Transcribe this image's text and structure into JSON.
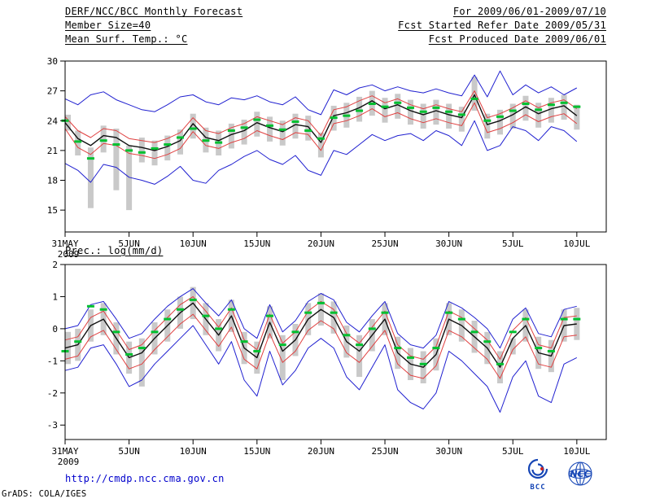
{
  "header": {
    "left": [
      "DERF/NCC/BCC Monthly Forecast",
      "Member Size=40"
    ],
    "right": [
      "For 2009/06/01-2009/07/10",
      "Fcst Started Refer Date 2009/05/31",
      "Fcst Produced Date 2009/06/01"
    ]
  },
  "footer": {
    "url": "http://cmdp.ncc.cma.gov.cn",
    "credit": "GrADS: COLA/IGES",
    "logos": [
      {
        "label": "BCC"
      },
      {
        "label": "NCC"
      }
    ]
  },
  "colors": {
    "envelope": "#2020d0",
    "quartile": "#e04040",
    "mean": "#101010",
    "marker": "#00c030",
    "bar": "#c9c9c9",
    "axis": "#000000",
    "url": "#0000cc",
    "logo": "#1545b5"
  },
  "chart_data": [
    {
      "type": "line",
      "name": "temperature-forecast-chart",
      "title": "Mean Surf. Temp.: °C",
      "x_tick_labels": [
        "31MAY",
        "5JUN",
        "10JUN",
        "15JUN",
        "20JUN",
        "25JUN",
        "30JUN",
        "5JUL",
        "10JUL"
      ],
      "x_tick_days": [
        0,
        5,
        10,
        15,
        20,
        25,
        30,
        35,
        40
      ],
      "x_sub_label": "2009",
      "x_extent": 42.3,
      "ylim": [
        12.8,
        30
      ],
      "yticks": [
        15,
        18,
        21,
        24,
        27,
        30
      ],
      "grid": false,
      "legend": "none",
      "bars": {
        "name": "ensemble-spread-bar",
        "color": "#c9c9c9",
        "lo": [
          23.0,
          20.5,
          15.2,
          20.8,
          17.0,
          15.0,
          19.8,
          19.5,
          20.0,
          20.6,
          22.2,
          20.8,
          20.5,
          21.2,
          21.6,
          22.4,
          21.9,
          21.5,
          22.2,
          22.0,
          20.3,
          23.0,
          23.3,
          23.9,
          24.5,
          23.8,
          24.2,
          23.6,
          23.2,
          23.6,
          23.2,
          22.9,
          25.0,
          22.2,
          22.6,
          23.2,
          24.0,
          23.3,
          23.8,
          24.1,
          23.1
        ],
        "hi": [
          24.6,
          23.0,
          21.3,
          23.5,
          23.2,
          21.5,
          22.3,
          22.0,
          22.5,
          23.1,
          24.7,
          23.3,
          23.0,
          23.7,
          24.1,
          24.9,
          24.4,
          24.0,
          24.7,
          24.5,
          22.8,
          25.5,
          25.8,
          26.4,
          27.0,
          26.3,
          26.7,
          26.1,
          25.7,
          26.1,
          25.7,
          25.4,
          28.4,
          24.7,
          25.1,
          25.7,
          26.5,
          25.8,
          26.3,
          26.6,
          25.6
        ]
      },
      "series": [
        {
          "name": "ensemble-max",
          "color": "#2020d0",
          "width": 1,
          "values": [
            26.2,
            25.6,
            26.6,
            26.9,
            26.1,
            25.6,
            25.1,
            24.9,
            25.6,
            26.4,
            26.6,
            25.9,
            25.6,
            26.3,
            26.1,
            26.5,
            25.9,
            25.6,
            26.4,
            25.1,
            24.6,
            27.1,
            26.6,
            27.3,
            27.6,
            27.0,
            27.4,
            27.0,
            26.8,
            27.2,
            26.8,
            26.5,
            28.6,
            26.4,
            29.0,
            26.6,
            27.6,
            26.8,
            27.4,
            26.6,
            27.3
          ]
        },
        {
          "name": "upper-quartile",
          "color": "#e04040",
          "width": 1,
          "values": [
            24.4,
            23.0,
            22.3,
            23.2,
            23.0,
            22.2,
            22.0,
            21.8,
            22.2,
            22.8,
            24.3,
            23.0,
            22.7,
            23.3,
            23.7,
            24.4,
            24.0,
            23.6,
            24.3,
            24.0,
            22.5,
            25.1,
            25.4,
            26.0,
            26.5,
            25.8,
            26.2,
            25.6,
            25.2,
            25.6,
            25.2,
            24.9,
            27.0,
            24.3,
            24.7,
            25.3,
            26.0,
            25.3,
            25.8,
            26.1,
            25.2
          ]
        },
        {
          "name": "lower-quartile",
          "color": "#e04040",
          "width": 1,
          "values": [
            23.2,
            21.3,
            20.6,
            21.7,
            21.5,
            20.7,
            20.5,
            20.2,
            20.6,
            21.2,
            22.9,
            21.5,
            21.2,
            21.8,
            22.2,
            23.0,
            22.5,
            22.1,
            22.8,
            22.6,
            21.0,
            23.7,
            24.0,
            24.5,
            25.2,
            24.4,
            24.8,
            24.2,
            23.8,
            24.2,
            23.8,
            23.5,
            25.8,
            22.8,
            23.2,
            23.8,
            24.6,
            23.9,
            24.4,
            24.7,
            23.7
          ]
        },
        {
          "name": "ensemble-mean",
          "color": "#101010",
          "width": 1.4,
          "values": [
            23.8,
            22.2,
            21.5,
            22.5,
            22.3,
            21.5,
            21.3,
            21.0,
            21.4,
            22.0,
            23.7,
            22.3,
            22.0,
            22.6,
            23.0,
            23.8,
            23.3,
            22.9,
            23.6,
            23.4,
            21.8,
            24.5,
            24.8,
            25.3,
            26.0,
            25.2,
            25.6,
            25.0,
            24.6,
            25.0,
            24.6,
            24.3,
            26.6,
            23.6,
            24.0,
            24.6,
            25.4,
            24.7,
            25.2,
            25.5,
            24.5
          ]
        },
        {
          "name": "ensemble-min",
          "color": "#2020d0",
          "width": 1,
          "values": [
            19.7,
            19.0,
            17.8,
            19.6,
            19.3,
            18.3,
            18.0,
            17.6,
            18.4,
            19.4,
            18.0,
            17.7,
            19.0,
            19.6,
            20.4,
            21.0,
            20.1,
            19.6,
            20.5,
            19.0,
            18.5,
            21.0,
            20.6,
            21.6,
            22.6,
            22.0,
            22.5,
            22.7,
            22.0,
            23.0,
            22.5,
            21.5,
            24.0,
            21.0,
            21.5,
            23.4,
            23.0,
            22.0,
            23.4,
            23.0,
            21.9
          ]
        }
      ],
      "markers": {
        "name": "green-dash-marker",
        "color": "#00c030",
        "values": [
          24.0,
          21.9,
          20.2,
          22.0,
          21.6,
          21.0,
          20.8,
          21.2,
          21.6,
          22.3,
          23.2,
          22.0,
          21.8,
          23.0,
          23.3,
          24.1,
          23.5,
          23.1,
          23.9,
          23.0,
          22.2,
          24.3,
          24.5,
          25.0,
          25.7,
          25.4,
          25.8,
          25.3,
          24.9,
          25.3,
          24.9,
          24.6,
          26.2,
          24.0,
          24.4,
          25.0,
          25.7,
          25.1,
          25.6,
          25.8,
          25.4
        ]
      }
    },
    {
      "type": "line",
      "name": "precipitation-forecast-chart",
      "title": "Prec.: log(mm/d)",
      "x_tick_labels": [
        "31MAY",
        "5JUN",
        "10JUN",
        "15JUN",
        "20JUN",
        "25JUN",
        "30JUN",
        "5JUL",
        "10JUL"
      ],
      "x_tick_days": [
        0,
        5,
        10,
        15,
        20,
        25,
        30,
        35,
        40
      ],
      "x_sub_label": "2009",
      "x_extent": 42.3,
      "ylim": [
        -3.45,
        2
      ],
      "yticks": [
        -3,
        -2,
        -1,
        0,
        1,
        2
      ],
      "grid": false,
      "legend": "none",
      "bars": {
        "name": "ensemble-spread-bar",
        "color": "#c9c9c9",
        "lo": [
          -1.1,
          -1.0,
          -0.4,
          -0.2,
          -0.8,
          -1.4,
          -1.8,
          -0.8,
          -0.4,
          0.0,
          0.3,
          -0.2,
          -0.7,
          -0.1,
          -1.1,
          -1.4,
          -0.3,
          -1.6,
          -0.85,
          -0.2,
          0.1,
          -0.15,
          -0.9,
          -1.5,
          -0.7,
          -0.2,
          -1.25,
          -1.6,
          -1.7,
          -1.3,
          -0.2,
          -0.4,
          -0.75,
          -1.1,
          -1.7,
          -0.8,
          -0.4,
          -1.25,
          -1.35,
          -0.4,
          -0.35
        ],
        "hi": [
          -0.1,
          0.0,
          0.6,
          0.8,
          0.2,
          -0.4,
          -0.3,
          0.2,
          0.6,
          1.0,
          1.3,
          0.8,
          0.3,
          0.9,
          -0.1,
          -0.4,
          0.7,
          -0.2,
          0.15,
          0.8,
          1.1,
          0.85,
          0.1,
          -0.2,
          0.3,
          0.8,
          -0.25,
          -0.6,
          -0.7,
          -0.3,
          0.8,
          0.6,
          0.25,
          -0.1,
          -0.7,
          -0.3,
          0.6,
          -0.25,
          -0.35,
          0.6,
          0.65
        ]
      },
      "series": [
        {
          "name": "ensemble-max",
          "color": "#2020d0",
          "width": 1,
          "values": [
            0.0,
            0.1,
            0.75,
            0.85,
            0.3,
            -0.3,
            -0.15,
            0.3,
            0.7,
            1.0,
            1.25,
            0.8,
            0.4,
            0.9,
            0.0,
            -0.3,
            0.75,
            -0.1,
            0.25,
            0.85,
            1.1,
            0.9,
            0.2,
            -0.1,
            0.4,
            0.85,
            -0.15,
            -0.5,
            -0.6,
            -0.2,
            0.85,
            0.65,
            0.35,
            0.0,
            -0.6,
            0.3,
            0.65,
            -0.15,
            -0.25,
            0.6,
            0.7
          ]
        },
        {
          "name": "upper-quartile",
          "color": "#e04040",
          "width": 1,
          "values": [
            -0.35,
            -0.25,
            0.35,
            0.55,
            -0.05,
            -0.65,
            -0.5,
            -0.05,
            0.35,
            0.75,
            1.0,
            0.55,
            0.05,
            0.65,
            -0.35,
            -0.65,
            0.45,
            -0.45,
            -0.1,
            0.55,
            0.85,
            0.6,
            -0.15,
            -0.45,
            0.05,
            0.55,
            -0.5,
            -0.85,
            -0.95,
            -0.55,
            0.55,
            0.35,
            0.0,
            -0.35,
            -0.95,
            -0.05,
            0.35,
            -0.5,
            -0.6,
            0.35,
            0.4
          ]
        },
        {
          "name": "lower-quartile",
          "color": "#e04040",
          "width": 1,
          "values": [
            -0.95,
            -0.85,
            -0.25,
            -0.05,
            -0.65,
            -1.25,
            -1.1,
            -0.65,
            -0.25,
            0.15,
            0.45,
            -0.05,
            -0.55,
            0.05,
            -0.95,
            -1.25,
            -0.15,
            -1.05,
            -0.7,
            -0.05,
            0.25,
            0.0,
            -0.75,
            -1.05,
            -0.55,
            -0.05,
            -1.1,
            -1.45,
            -1.55,
            -1.15,
            -0.05,
            -0.25,
            -0.6,
            -0.95,
            -1.55,
            -0.65,
            -0.25,
            -1.1,
            -1.2,
            -0.25,
            -0.2
          ]
        },
        {
          "name": "ensemble-mean",
          "color": "#101010",
          "width": 1.4,
          "values": [
            -0.6,
            -0.5,
            0.1,
            0.3,
            -0.3,
            -0.9,
            -0.75,
            -0.3,
            0.1,
            0.5,
            0.8,
            0.3,
            -0.2,
            0.4,
            -0.6,
            -0.9,
            0.2,
            -0.7,
            -0.35,
            0.3,
            0.6,
            0.35,
            -0.4,
            -0.7,
            -0.2,
            0.3,
            -0.75,
            -1.1,
            -1.2,
            -0.8,
            0.3,
            0.1,
            -0.25,
            -0.6,
            -1.2,
            -0.3,
            0.1,
            -0.75,
            -0.85,
            0.1,
            0.15
          ]
        },
        {
          "name": "ensemble-min",
          "color": "#2020d0",
          "width": 1,
          "values": [
            -1.3,
            -1.2,
            -0.6,
            -0.5,
            -1.1,
            -1.8,
            -1.6,
            -1.1,
            -0.7,
            -0.3,
            0.1,
            -0.5,
            -1.1,
            -0.4,
            -1.6,
            -2.1,
            -0.7,
            -1.75,
            -1.3,
            -0.6,
            -0.3,
            -0.6,
            -1.5,
            -1.9,
            -1.2,
            -0.5,
            -1.9,
            -2.3,
            -2.5,
            -2.0,
            -0.7,
            -1.0,
            -1.4,
            -1.8,
            -2.6,
            -1.5,
            -1.0,
            -2.1,
            -2.3,
            -1.1,
            -0.9
          ]
        }
      ],
      "markers": {
        "name": "green-dash-marker",
        "color": "#00c030",
        "values": [
          -0.7,
          -0.4,
          0.7,
          0.6,
          -0.1,
          -0.8,
          -0.6,
          -0.1,
          0.3,
          0.6,
          0.9,
          0.4,
          0.0,
          0.6,
          -0.4,
          -0.7,
          0.4,
          -0.5,
          -0.1,
          0.5,
          0.8,
          0.5,
          -0.2,
          -0.5,
          0.0,
          0.5,
          -0.6,
          -0.9,
          -1.1,
          -0.6,
          0.5,
          0.3,
          -0.1,
          -0.4,
          -1.1,
          -0.1,
          0.3,
          -0.6,
          -0.7,
          0.3,
          0.3
        ]
      }
    }
  ]
}
